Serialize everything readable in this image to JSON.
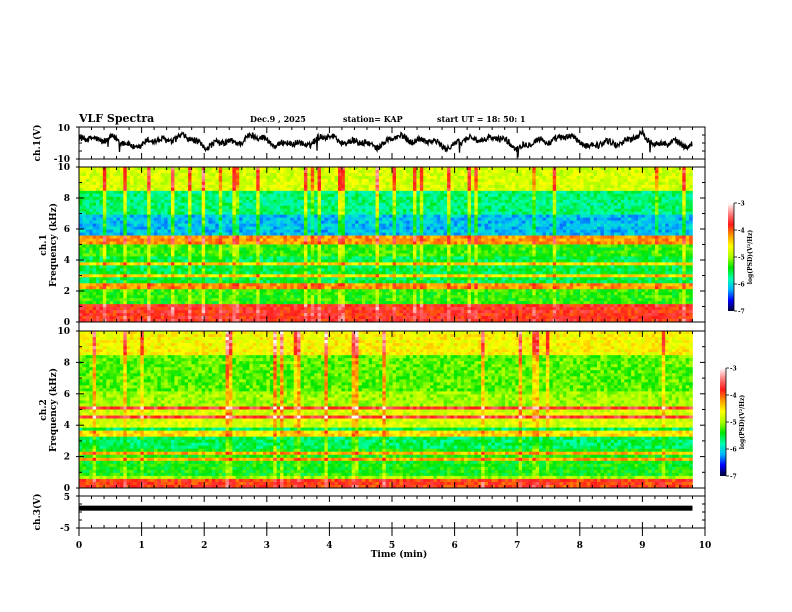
{
  "header": {
    "title": "VLF Spectra",
    "date": "Dec.9  , 2025",
    "station": "station= KAP",
    "start": "start  UT  =   18: 50: 1"
  },
  "colors": {
    "trace": "#000000",
    "colormap": [
      "#000033",
      "#0000ff",
      "#00b4ff",
      "#00ffb0",
      "#00e600",
      "#aaff00",
      "#ffff00",
      "#ff9900",
      "#ff1a1a",
      "#ff8080",
      "#ffffff"
    ]
  },
  "chart_data": [
    {
      "type": "line",
      "name": "ch1-waveform",
      "ylabel": "ch.1(V)",
      "ylim": [
        -10,
        10
      ],
      "yticks": [
        "10",
        "-10"
      ],
      "xlim": [
        0,
        10
      ],
      "data_end_min": 9.8,
      "description_values": "noisy waveform fluctuating roughly between -4 and 6 V"
    },
    {
      "type": "heatmap",
      "name": "ch1-spectrogram",
      "ylabel_channel": "ch.1",
      "ylabel": "Frequency  (kHz)",
      "ylim": [
        0,
        10
      ],
      "yticks": [
        "0",
        "2",
        "4",
        "6",
        "8",
        "10"
      ],
      "xlim": [
        0,
        10
      ],
      "data_end_min": 9.8,
      "bands_khz": [
        0.2,
        0.6,
        0.9,
        1.1,
        2.2,
        2.4,
        3.0,
        3.7,
        5.2,
        5.4
      ],
      "colorbar": {
        "label": "log(PSD)(V²/Hz)",
        "range": [
          -7,
          -3
        ],
        "ticks": [
          "-3",
          "-4",
          "-5",
          "-6",
          "-7"
        ]
      }
    },
    {
      "type": "heatmap",
      "name": "ch2-spectrogram",
      "ylabel_channel": "ch.2",
      "ylabel": "Frequency  (kHz)",
      "ylim": [
        0,
        10
      ],
      "yticks": [
        "0",
        "2",
        "4",
        "6",
        "8",
        "10"
      ],
      "xlim": [
        0,
        10
      ],
      "data_end_min": 9.8,
      "bands_khz": [
        0.15,
        0.3,
        0.5,
        1.8,
        2.2,
        3.3,
        3.6,
        4.5,
        5.1
      ],
      "colorbar": {
        "label": "log(PSD)(V²/Hz)",
        "range": [
          -7,
          -3
        ],
        "ticks": [
          "-3",
          "-4",
          "-5",
          "-6",
          "-7"
        ]
      }
    },
    {
      "type": "line",
      "name": "ch3-waveform",
      "ylabel": "ch.3(V)",
      "ylim": [
        -5,
        5
      ],
      "yticks": [
        "5",
        "-5"
      ],
      "xlim": [
        0,
        10
      ],
      "data_end_min": 9.8,
      "level_v": 1.2,
      "xlabel": "Time  (min)",
      "xticks": [
        "0",
        "1",
        "2",
        "3",
        "4",
        "5",
        "6",
        "7",
        "8",
        "9",
        "10"
      ]
    }
  ]
}
